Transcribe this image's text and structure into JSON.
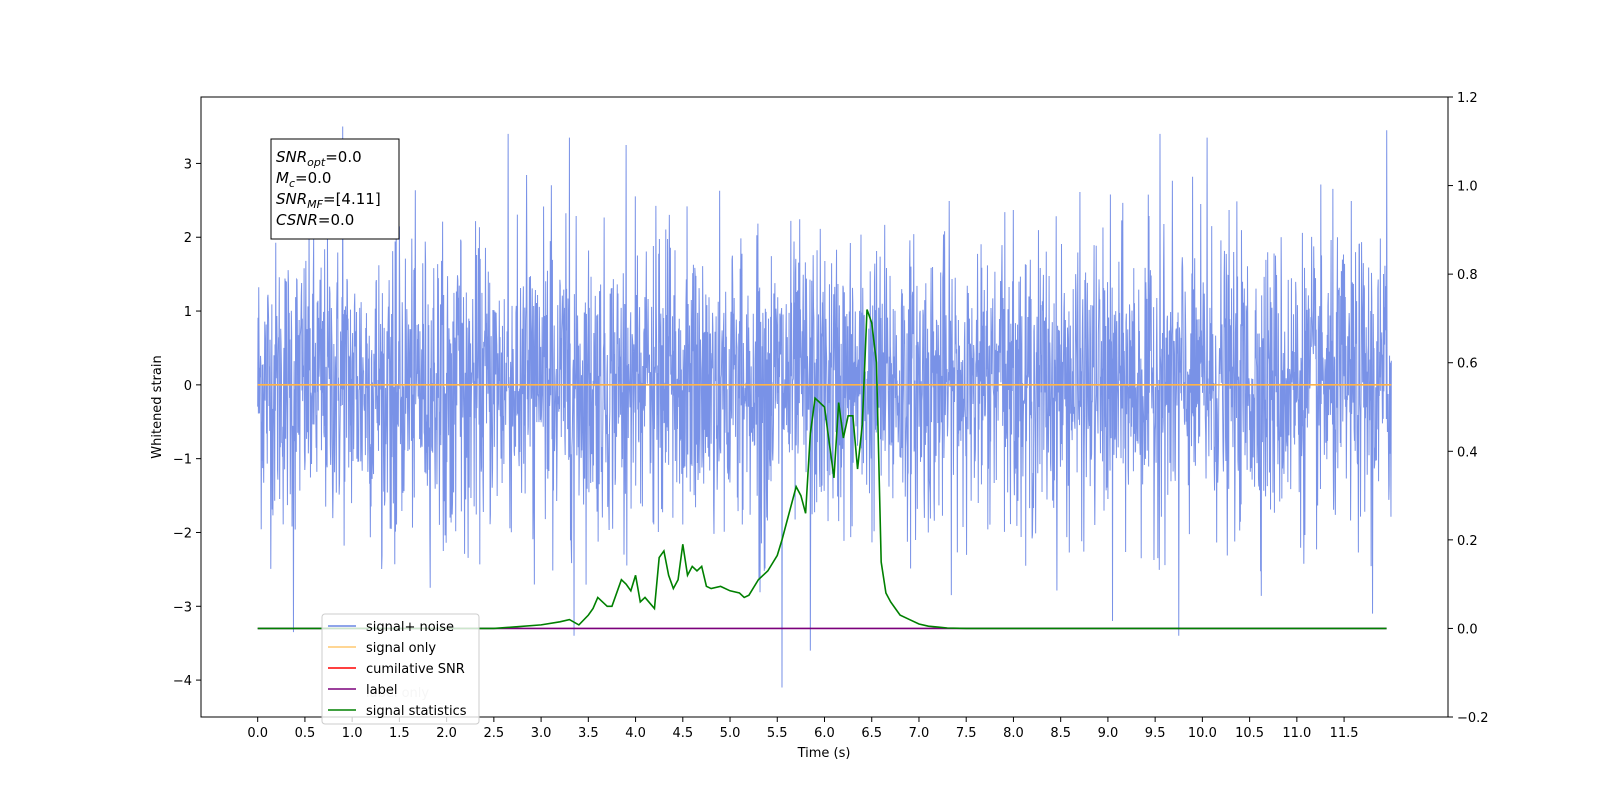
{
  "chart_data": {
    "type": "line",
    "xlabel": "Time (s)",
    "ylabel_left": "Whitened strain",
    "ylabel_right": "",
    "xlim": [
      -0.6,
      12.6
    ],
    "ylim_left": [
      -4.5,
      3.9
    ],
    "ylim_right": [
      -0.2,
      1.2
    ],
    "x_ticks": [
      0.0,
      0.5,
      1.0,
      1.5,
      2.0,
      2.5,
      3.0,
      3.5,
      4.0,
      4.5,
      5.0,
      5.5,
      6.0,
      6.5,
      7.0,
      7.5,
      8.0,
      8.5,
      9.0,
      9.5,
      10.0,
      10.5,
      11.0,
      11.5
    ],
    "x_tick_labels": [
      "0.0",
      "0.5",
      "1.0",
      "1.5",
      "2.0",
      "2.5",
      "3.0",
      "3.5",
      "4.0",
      "4.5",
      "5.0",
      "5.5",
      "6.0",
      "6.5",
      "7.0",
      "7.5",
      "8.0",
      "8.5",
      "9.0",
      "9.5",
      "10.0",
      "10.5",
      "11.0",
      "11.5"
    ],
    "y_left_ticks": [
      -4,
      -3,
      -2,
      -1,
      0,
      1,
      2,
      3
    ],
    "y_left_tick_labels": [
      "−4",
      "−3",
      "−2",
      "−1",
      "0",
      "1",
      "2",
      "3"
    ],
    "y_right_ticks": [
      -0.2,
      0.0,
      0.2,
      0.4,
      0.6,
      0.8,
      1.0,
      1.2
    ],
    "y_right_tick_labels": [
      "−0.2",
      "0.0",
      "0.2",
      "0.4",
      "0.6",
      "0.8",
      "1.0",
      "1.2"
    ],
    "grid": false,
    "legend_position": "lower-left",
    "series": [
      {
        "name": "signal+ noise",
        "axis": "left",
        "color": "#6a86e4",
        "style": "dense noise band",
        "x_range": [
          0.0,
          12.0
        ],
        "band": [
          -1.3,
          1.5
        ],
        "peaks": [
          {
            "x": 0.9,
            "y": 3.5
          },
          {
            "x": 2.65,
            "y": 3.4
          },
          {
            "x": 3.3,
            "y": 3.35
          },
          {
            "x": 3.9,
            "y": 3.25
          },
          {
            "x": 11.95,
            "y": 3.45
          },
          {
            "x": 9.55,
            "y": 3.4
          },
          {
            "x": 10.05,
            "y": 3.35
          },
          {
            "x": 5.55,
            "y": -4.1
          },
          {
            "x": 5.85,
            "y": -3.6
          },
          {
            "x": 0.38,
            "y": -3.35
          },
          {
            "x": 3.35,
            "y": -3.4
          },
          {
            "x": 9.75,
            "y": -3.4
          },
          {
            "x": 9.05,
            "y": -3.2
          },
          {
            "x": 11.8,
            "y": -3.1
          }
        ]
      },
      {
        "name": "signal only",
        "axis": "left",
        "color": "#ffb347",
        "x": [
          0.0,
          12.0
        ],
        "y": [
          0.0,
          0.0
        ]
      },
      {
        "name": "cumilative SNR",
        "axis": "right",
        "color": "#ff0000",
        "x": [],
        "y": []
      },
      {
        "name": "label",
        "axis": "right",
        "color": "#7b007b",
        "x": [
          0.0,
          11.95
        ],
        "y": [
          0.0,
          0.0
        ]
      },
      {
        "name": "label only",
        "axis": "right",
        "color": "#cccccc",
        "x": [],
        "y": []
      },
      {
        "name": "signal statistics",
        "axis": "right",
        "color": "#008000",
        "x": [
          0.0,
          2.0,
          2.5,
          2.7,
          3.0,
          3.2,
          3.3,
          3.4,
          3.5,
          3.55,
          3.6,
          3.7,
          3.75,
          3.85,
          3.9,
          3.95,
          4.0,
          4.05,
          4.1,
          4.2,
          4.25,
          4.3,
          4.35,
          4.4,
          4.45,
          4.5,
          4.55,
          4.6,
          4.65,
          4.7,
          4.75,
          4.8,
          4.9,
          5.0,
          5.1,
          5.15,
          5.2,
          5.3,
          5.4,
          5.5,
          5.55,
          5.6,
          5.7,
          5.75,
          5.8,
          5.85,
          5.9,
          6.0,
          6.05,
          6.1,
          6.15,
          6.2,
          6.25,
          6.3,
          6.35,
          6.4,
          6.45,
          6.5,
          6.55,
          6.6,
          6.65,
          6.7,
          6.75,
          6.8,
          6.9,
          7.0,
          7.1,
          7.2,
          7.3,
          7.5,
          8.0,
          9.0,
          11.0,
          11.95
        ],
        "y": [
          0.0,
          0.0,
          0.0,
          0.003,
          0.008,
          0.015,
          0.02,
          0.008,
          0.03,
          0.045,
          0.07,
          0.05,
          0.05,
          0.11,
          0.1,
          0.085,
          0.12,
          0.06,
          0.07,
          0.045,
          0.16,
          0.175,
          0.12,
          0.09,
          0.11,
          0.19,
          0.12,
          0.14,
          0.13,
          0.14,
          0.095,
          0.09,
          0.095,
          0.085,
          0.08,
          0.07,
          0.075,
          0.11,
          0.13,
          0.165,
          0.2,
          0.24,
          0.32,
          0.3,
          0.26,
          0.44,
          0.52,
          0.5,
          0.42,
          0.34,
          0.51,
          0.43,
          0.48,
          0.48,
          0.36,
          0.46,
          0.72,
          0.69,
          0.6,
          0.15,
          0.08,
          0.06,
          0.045,
          0.03,
          0.02,
          0.01,
          0.005,
          0.003,
          0.001,
          0.0,
          0.0,
          0.0,
          0.0,
          0.0
        ]
      }
    ],
    "annotation": {
      "lines": [
        {
          "base": "SNR",
          "sub": "opt",
          "value": "=0.0"
        },
        {
          "base": "M",
          "sub": "c",
          "value": "=0.0"
        },
        {
          "base": "SNR",
          "sub": "MF",
          "value": "=[4.11]"
        },
        {
          "base": "CSNR",
          "sub": "",
          "value": "=0.0"
        }
      ]
    },
    "legend": [
      {
        "label": "signal+ noise",
        "color": "#6a86e4"
      },
      {
        "label": "signal only",
        "color": "#ffc870"
      },
      {
        "label": "cumilative SNR",
        "color": "#ff0000"
      },
      {
        "label": "label",
        "color": "#7b007b"
      },
      {
        "label": "signal statistics",
        "color": "#008000"
      }
    ],
    "legend_hidden_text": [
      {
        "label": "label only"
      }
    ]
  }
}
